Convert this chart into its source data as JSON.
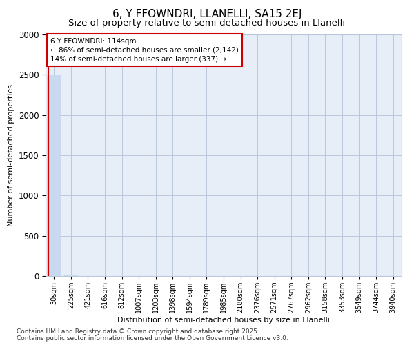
{
  "title": "6, Y FFOWNDRI, LLANELLI, SA15 2EJ",
  "subtitle": "Size of property relative to semi-detached houses in Llanelli",
  "xlabel": "Distribution of semi-detached houses by size in Llanelli",
  "ylabel": "Number of semi-detached properties",
  "annotation_text_line1": "6 Y FFOWNDRI: 114sqm",
  "annotation_text_line2": "← 86% of semi-detached houses are smaller (2,142)",
  "annotation_text_line3": "14% of semi-detached houses are larger (337) →",
  "bar_color": "#c9d9f0",
  "marker_line_color": "#cc0000",
  "annotation_box_edgecolor": "#cc0000",
  "grid_color": "#bbc8dc",
  "background_color": "#e8eef8",
  "ylim": [
    0,
    3000
  ],
  "yticks": [
    0,
    500,
    1000,
    1500,
    2000,
    2500,
    3000
  ],
  "bin_labels": [
    "30sqm",
    "225sqm",
    "421sqm",
    "616sqm",
    "812sqm",
    "1007sqm",
    "1203sqm",
    "1398sqm",
    "1594sqm",
    "1789sqm",
    "1985sqm",
    "2180sqm",
    "2376sqm",
    "2571sqm",
    "2767sqm",
    "2962sqm",
    "3158sqm",
    "3353sqm",
    "3549sqm",
    "3744sqm",
    "3940sqm"
  ],
  "bar_heights": [
    2500,
    8,
    2,
    1,
    0,
    0,
    0,
    0,
    0,
    0,
    0,
    0,
    0,
    0,
    0,
    0,
    0,
    0,
    0,
    0,
    0
  ],
  "property_bin_index": 0,
  "footer_text": "Contains HM Land Registry data © Crown copyright and database right 2025.\nContains public sector information licensed under the Open Government Licence v3.0.",
  "title_fontsize": 11,
  "subtitle_fontsize": 9.5,
  "label_fontsize": 8,
  "tick_fontsize": 7,
  "footer_fontsize": 6.5,
  "annot_fontsize": 7.5
}
